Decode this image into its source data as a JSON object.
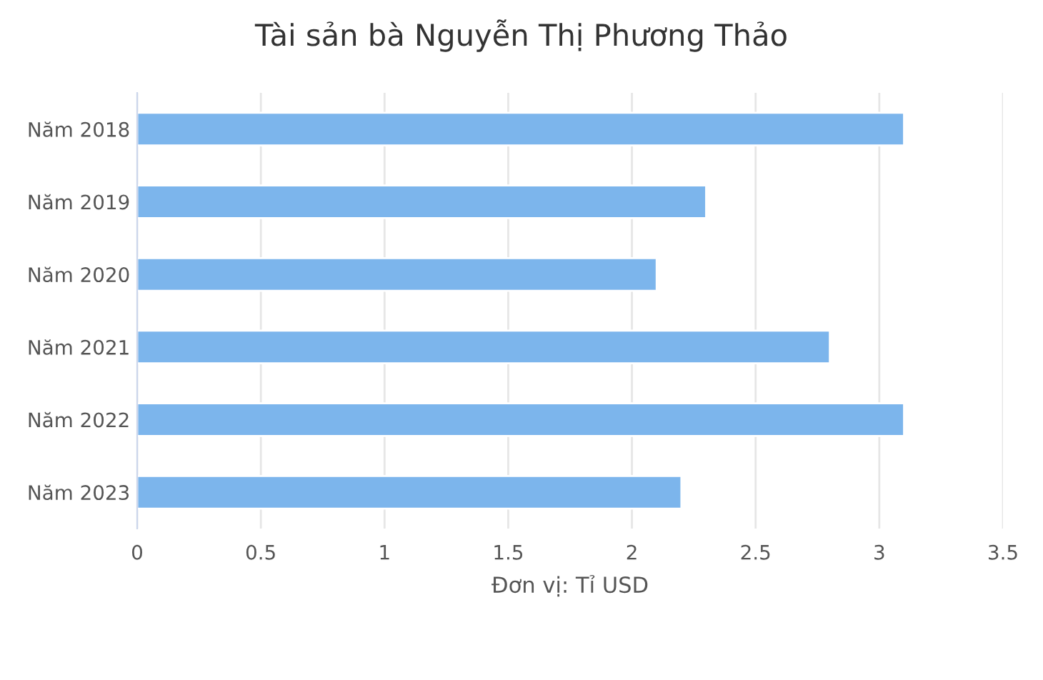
{
  "chart_data": {
    "type": "bar",
    "orientation": "horizontal",
    "title": "Tài sản bà Nguyễn Thị Phương Thảo",
    "xlabel": "Đơn vị: Tỉ USD",
    "categories": [
      "Năm 2018",
      "Năm 2019",
      "Năm 2020",
      "Năm 2021",
      "Năm 2022",
      "Năm 2023"
    ],
    "series": [
      {
        "color": "#7cb5ec",
        "values": [
          3.1,
          2.3,
          2.1,
          2.8,
          3.1,
          2.2
        ]
      }
    ],
    "xlim": [
      0,
      3.5
    ],
    "xticks": [
      0,
      0.5,
      1,
      1.5,
      2,
      2.5,
      3,
      3.5
    ],
    "grid": "x"
  }
}
